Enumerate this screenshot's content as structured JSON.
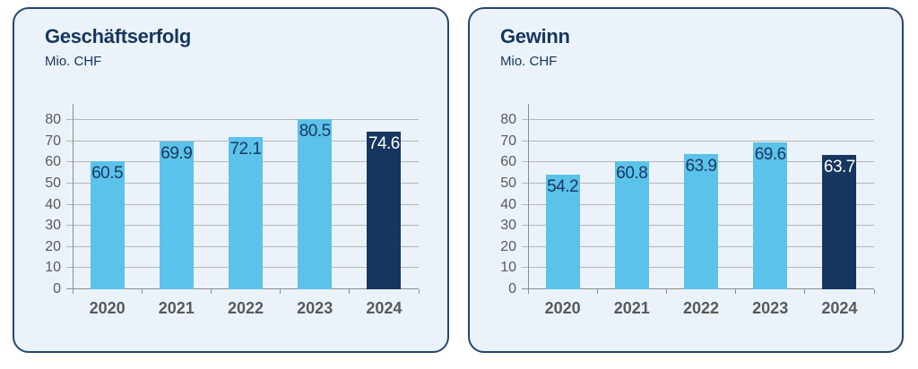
{
  "page_background": "#FFFFFF",
  "style": {
    "card_background": "#EBF2F9",
    "card_border": "#26456F",
    "title_color": "#16365E",
    "axis_color": "#8C8C8C",
    "gridline_color": "#B7B7B7",
    "tick_label_color": "#595959",
    "bar_color": "#5BC2E9",
    "highlight_bar_color": "#16355F",
    "value_label_color": "#1A3864",
    "value_label_color_on_dark": "#FFFFFF"
  },
  "chart_data": [
    {
      "type": "bar",
      "title": "Geschäftserfolg",
      "subtitle": "Mio. CHF",
      "categories": [
        "2020",
        "2021",
        "2022",
        "2023",
        "2024"
      ],
      "values": [
        60.5,
        69.9,
        72.1,
        80.5,
        74.6
      ],
      "bar_colors": [
        "#5BC2E9",
        "#5BC2E9",
        "#5BC2E9",
        "#5BC2E9",
        "#16355F"
      ],
      "label_colors": [
        "#1A3864",
        "#1A3864",
        "#1A3864",
        "#1A3864",
        "#FFFFFF"
      ],
      "xlabel": "",
      "ylabel": "Mio. CHF",
      "ylim": [
        0,
        80
      ],
      "yticks": [
        0,
        10,
        20,
        30,
        40,
        50,
        60,
        70,
        80
      ],
      "grid": true,
      "legend": "none",
      "highlighted_category": "2024"
    },
    {
      "type": "bar",
      "title": "Gewinn",
      "subtitle": "Mio. CHF",
      "categories": [
        "2020",
        "2021",
        "2022",
        "2023",
        "2024"
      ],
      "values": [
        54.2,
        60.8,
        63.9,
        69.6,
        63.7
      ],
      "bar_colors": [
        "#5BC2E9",
        "#5BC2E9",
        "#5BC2E9",
        "#5BC2E9",
        "#16355F"
      ],
      "label_colors": [
        "#1A3864",
        "#1A3864",
        "#1A3864",
        "#1A3864",
        "#FFFFFF"
      ],
      "xlabel": "",
      "ylabel": "Mio. CHF",
      "ylim": [
        0,
        80
      ],
      "yticks": [
        0,
        10,
        20,
        30,
        40,
        50,
        60,
        70,
        80
      ],
      "grid": true,
      "legend": "none",
      "highlighted_category": "2024"
    }
  ]
}
